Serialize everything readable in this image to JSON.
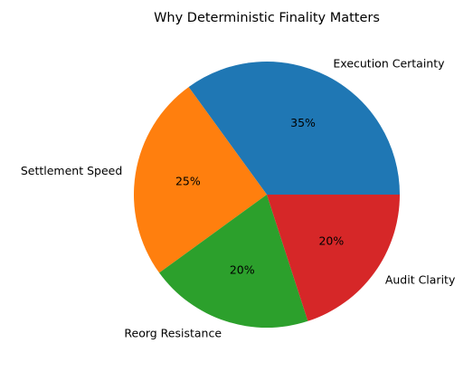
{
  "chart_data": {
    "type": "pie",
    "title": "Why Deterministic Finality Matters",
    "categories": [
      "Execution Certainty",
      "Settlement Speed",
      "Reorg Resistance",
      "Audit Clarity"
    ],
    "values": [
      35,
      25,
      20,
      20
    ],
    "percent_labels": [
      "35%",
      "25%",
      "20%",
      "20%"
    ],
    "colors": [
      "#1f77b4",
      "#ff7f0e",
      "#2ca02c",
      "#d62728"
    ],
    "start_angle_deg": 0,
    "direction": "counterclockwise",
    "legend": "none"
  }
}
